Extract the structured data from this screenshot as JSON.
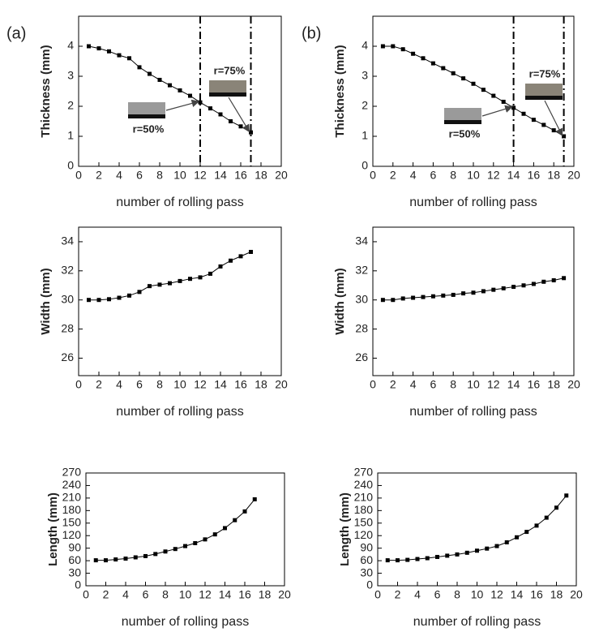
{
  "panel_labels": [
    "(a)",
    "(b)"
  ],
  "chart_data": [
    {
      "type": "line",
      "xlabel": "number of rolling pass",
      "ylabel": "Thickness (mm)",
      "color": "#000000",
      "x": [
        1,
        2,
        3,
        4,
        5,
        6,
        7,
        8,
        9,
        10,
        11,
        12,
        13,
        14,
        15,
        16,
        17
      ],
      "values": [
        4.0,
        3.93,
        3.83,
        3.7,
        3.6,
        3.3,
        3.08,
        2.88,
        2.7,
        2.53,
        2.35,
        2.13,
        1.93,
        1.73,
        1.5,
        1.33,
        1.13
      ],
      "xlim": [
        0,
        20
      ],
      "xticks": [
        0,
        2,
        4,
        6,
        8,
        10,
        12,
        14,
        16,
        18,
        20
      ],
      "ylim": [
        0,
        5
      ],
      "yticks": [
        0,
        1,
        2,
        3,
        4
      ],
      "vlines": [
        12,
        17
      ],
      "annotations": [
        "r=50%",
        "r=75%"
      ]
    },
    {
      "type": "line",
      "xlabel": "number of rolling pass",
      "ylabel": "Thickness (mm)",
      "color": "#000000",
      "x": [
        1,
        2,
        3,
        4,
        5,
        6,
        7,
        8,
        9,
        10,
        11,
        12,
        13,
        14,
        15,
        16,
        17,
        18,
        19
      ],
      "values": [
        4.0,
        4.0,
        3.9,
        3.75,
        3.6,
        3.43,
        3.27,
        3.1,
        2.93,
        2.75,
        2.55,
        2.35,
        2.15,
        1.95,
        1.75,
        1.55,
        1.38,
        1.2,
        1.0
      ],
      "xlim": [
        0,
        20
      ],
      "xticks": [
        0,
        2,
        4,
        6,
        8,
        10,
        12,
        14,
        16,
        18,
        20
      ],
      "ylim": [
        0,
        5
      ],
      "yticks": [
        0,
        1,
        2,
        3,
        4
      ],
      "vlines": [
        14,
        19
      ],
      "annotations": [
        "r=50%",
        "r=75%"
      ]
    },
    {
      "type": "line",
      "xlabel": "number of rolling pass",
      "ylabel": "Width (mm)",
      "color": "#000000",
      "x": [
        1,
        2,
        3,
        4,
        5,
        6,
        7,
        8,
        9,
        10,
        11,
        12,
        13,
        14,
        15,
        16,
        17
      ],
      "values": [
        30.0,
        30.0,
        30.05,
        30.15,
        30.3,
        30.55,
        30.95,
        31.05,
        31.15,
        31.3,
        31.45,
        31.55,
        31.8,
        32.3,
        32.7,
        33.0,
        33.3
      ],
      "xlim": [
        0,
        20
      ],
      "xticks": [
        0,
        2,
        4,
        6,
        8,
        10,
        12,
        14,
        16,
        18,
        20
      ],
      "ylim": [
        24.8,
        35
      ],
      "yticks": [
        26,
        28,
        30,
        32,
        34
      ]
    },
    {
      "type": "line",
      "xlabel": "number of rolling pass",
      "ylabel": "Width (mm)",
      "color": "#000000",
      "x": [
        1,
        2,
        3,
        4,
        5,
        6,
        7,
        8,
        9,
        10,
        11,
        12,
        13,
        14,
        15,
        16,
        17,
        18,
        19
      ],
      "values": [
        30.0,
        30.0,
        30.1,
        30.15,
        30.2,
        30.25,
        30.3,
        30.35,
        30.45,
        30.5,
        30.6,
        30.7,
        30.8,
        30.9,
        31.0,
        31.1,
        31.25,
        31.35,
        31.5
      ],
      "xlim": [
        0,
        20
      ],
      "xticks": [
        0,
        2,
        4,
        6,
        8,
        10,
        12,
        14,
        16,
        18,
        20
      ],
      "ylim": [
        24.8,
        35
      ],
      "yticks": [
        26,
        28,
        30,
        32,
        34
      ]
    },
    {
      "type": "line",
      "xlabel": "number of rolling pass",
      "ylabel": "Length (mm)",
      "color": "#000000",
      "x": [
        1,
        2,
        3,
        4,
        5,
        6,
        7,
        8,
        9,
        10,
        11,
        12,
        13,
        14,
        15,
        16,
        17
      ],
      "values": [
        61,
        61,
        63,
        65,
        68,
        71,
        76,
        82,
        88,
        95,
        102,
        111,
        123,
        138,
        157,
        178,
        207
      ],
      "xlim": [
        0,
        20
      ],
      "xticks": [
        0,
        2,
        4,
        6,
        8,
        10,
        12,
        14,
        16,
        18,
        20
      ],
      "ylim": [
        0,
        270
      ],
      "yticks": [
        0,
        30,
        60,
        90,
        120,
        150,
        180,
        210,
        240,
        270
      ]
    },
    {
      "type": "line",
      "xlabel": "number of rolling pass",
      "ylabel": "Length (mm)",
      "color": "#000000",
      "x": [
        1,
        2,
        3,
        4,
        5,
        6,
        7,
        8,
        9,
        10,
        11,
        12,
        13,
        14,
        15,
        16,
        17,
        18,
        19
      ],
      "values": [
        61,
        61,
        62,
        64,
        66,
        69,
        72,
        75,
        79,
        84,
        89,
        95,
        104,
        116,
        129,
        144,
        163,
        187,
        216
      ],
      "xlim": [
        0,
        20
      ],
      "xticks": [
        0,
        2,
        4,
        6,
        8,
        10,
        12,
        14,
        16,
        18,
        20
      ],
      "ylim": [
        0,
        270
      ],
      "yticks": [
        0,
        30,
        60,
        90,
        120,
        150,
        180,
        210,
        240,
        270
      ]
    }
  ]
}
